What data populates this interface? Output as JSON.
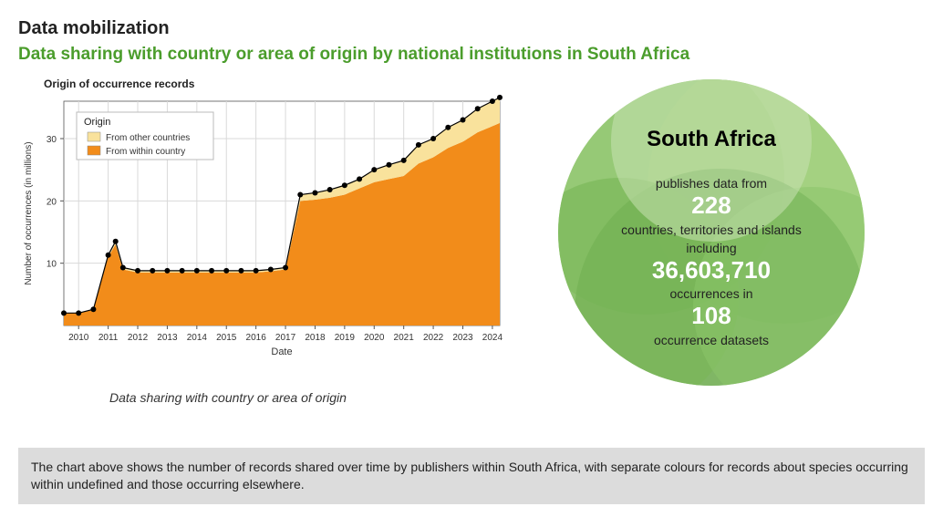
{
  "titles": {
    "main": "Data mobilization",
    "sub": "Data sharing with country or area of origin by national institutions in South Africa",
    "sub_color": "#4b9d2c"
  },
  "chart": {
    "type": "stacked-area",
    "title": "Origin of occurrence records",
    "xlabel": "Date",
    "ylabel": "Number of occurrences (in millions)",
    "label_fontsize": 10,
    "background_color": "#ffffff",
    "grid_color": "#d9d9d9",
    "axis_color": "#555555",
    "line_color": "#000000",
    "line_width": 1.2,
    "marker_size": 3,
    "ylim": [
      0,
      36
    ],
    "ytick_step": 10,
    "yticks": [
      10,
      20,
      30
    ],
    "xticks": [
      "2010",
      "2011",
      "2012",
      "2013",
      "2014",
      "2015",
      "2016",
      "2017",
      "2018",
      "2019",
      "2020",
      "2021",
      "2022",
      "2023",
      "2024"
    ],
    "series": [
      {
        "name": "From other countries",
        "color": "#f9e29c"
      },
      {
        "name": "From within country",
        "color": "#f28c1a"
      }
    ],
    "legend": {
      "title": "Origin",
      "position": "top-left",
      "border_color": "#bbbbbb",
      "bg": "#ffffff"
    },
    "data_points_x": [
      2009.5,
      2010,
      2010.5,
      2011,
      2011.25,
      2011.5,
      2012,
      2012.5,
      2013,
      2013.5,
      2014,
      2014.5,
      2015,
      2015.5,
      2016,
      2016.5,
      2017,
      2017.5,
      2018,
      2018.5,
      2019,
      2019.5,
      2020,
      2020.5,
      2021,
      2021.5,
      2022,
      2022.5,
      2023,
      2023.5,
      2024,
      2024.25
    ],
    "within_y": [
      2,
      2,
      2.5,
      11,
      13,
      9,
      8.5,
      8.5,
      8.5,
      8.5,
      8.5,
      8.5,
      8.5,
      8.5,
      8.5,
      8.7,
      9,
      20,
      20.2,
      20.5,
      21,
      22,
      23,
      23.5,
      24,
      26,
      27,
      28.5,
      29.5,
      31,
      32,
      32.5
    ],
    "total_y": [
      2,
      2,
      2.6,
      11.3,
      13.5,
      9.3,
      8.8,
      8.8,
      8.8,
      8.8,
      8.8,
      8.8,
      8.8,
      8.8,
      8.8,
      9.0,
      9.3,
      21,
      21.3,
      21.8,
      22.5,
      23.5,
      25,
      25.8,
      26.5,
      29,
      30,
      31.8,
      33,
      34.8,
      36,
      36.6
    ]
  },
  "caption": "Data sharing with country or area of origin",
  "circle": {
    "bg_colors": [
      "#b6d89a",
      "#8bc46a",
      "#6aa84f",
      "#9ccf76",
      "#7ab757",
      "#c9e2b2"
    ],
    "title": "South Africa",
    "lines": {
      "l1": "publishes data from",
      "n1": "228",
      "l2": "countries, territories and islands",
      "l3": "including",
      "n2": "36,603,710",
      "l4": "occurrences in",
      "n3": "108",
      "l5": "occurrence datasets"
    }
  },
  "footer": "The chart above shows the number of records shared over time by publishers within South Africa, with separate colours for records about species occurring within undefined and those occurring elsewhere."
}
